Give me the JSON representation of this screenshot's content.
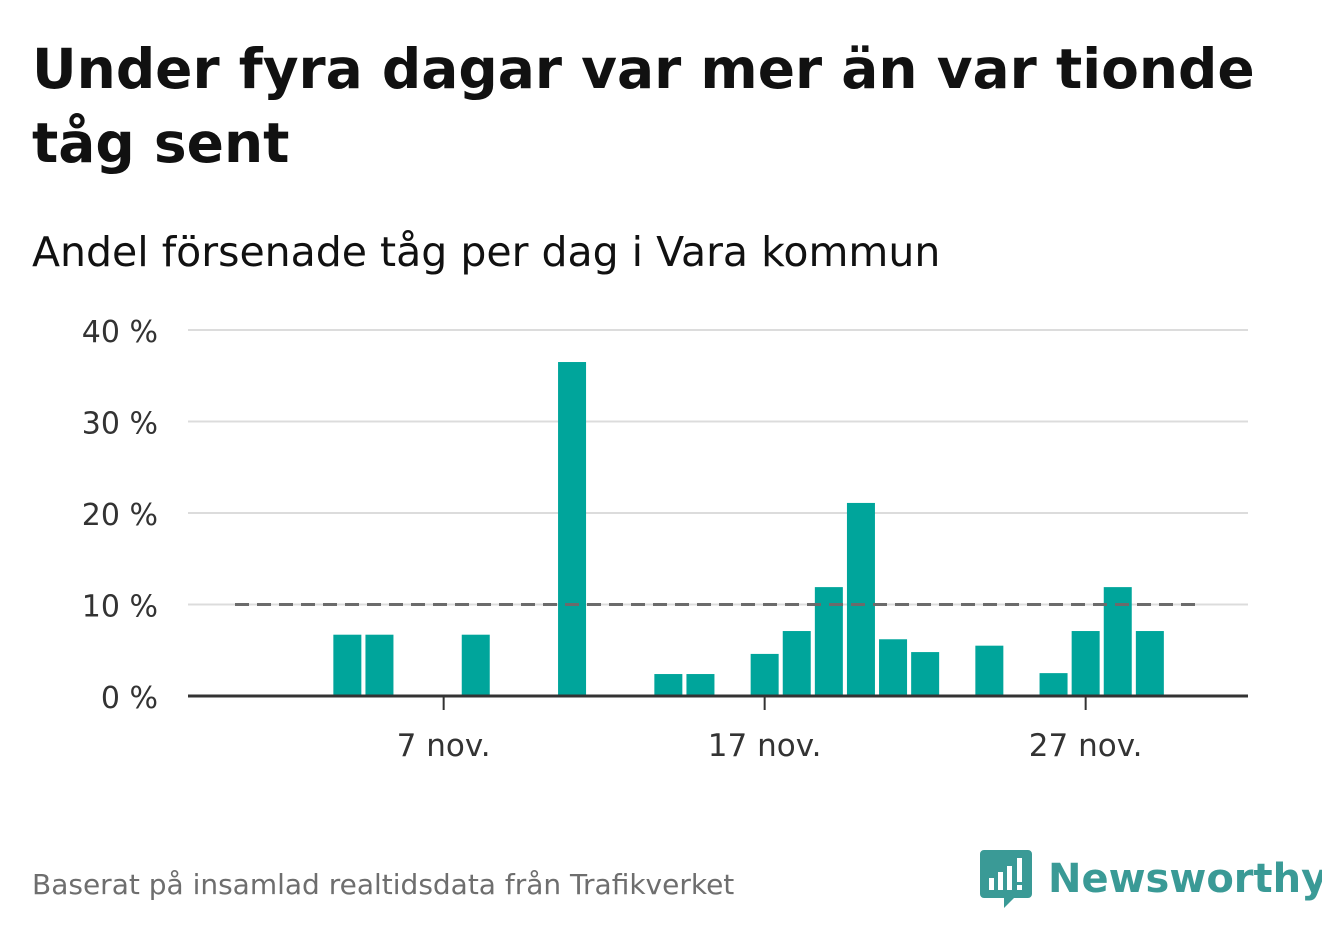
{
  "chart_data": {
    "type": "bar",
    "title": "Under fyra dagar var mer än var tionde tåg sent",
    "subtitle": "Andel försenade tåg per dag i Vara kommun",
    "x_start_day": 1,
    "x_end_day": 30,
    "x_tick_days": [
      7,
      17,
      27
    ],
    "x_tick_labels": [
      "7 nov.",
      "17 nov.",
      "27 nov."
    ],
    "days": [
      4,
      5,
      8,
      11,
      14,
      15,
      17,
      18,
      19,
      20,
      21,
      22,
      24,
      26,
      27,
      28,
      29
    ],
    "values": [
      6.7,
      6.7,
      6.7,
      36.5,
      2.4,
      2.4,
      4.6,
      7.1,
      11.9,
      21.1,
      6.2,
      4.8,
      5.5,
      2.5,
      7.1,
      11.9,
      7.1
    ],
    "ylim": [
      0,
      40
    ],
    "y_ticks": [
      0,
      10,
      20,
      30,
      40
    ],
    "y_tick_labels": [
      "0 %",
      "10 %",
      "20 %",
      "30 %",
      "40 %"
    ],
    "reference_line": 10,
    "grid": true,
    "colors": {
      "bar": "#00a59b",
      "reference": "#6b6b6b",
      "grid": "#dcdcdc",
      "axis": "#333333"
    }
  },
  "footer": {
    "source": "Baserat på insamlad realtidsdata från Trafikverket"
  },
  "brand": {
    "name": "Newsworthy",
    "logo_icon": "bar-chart-speech-bubble-icon",
    "color": "#3a9a96"
  }
}
